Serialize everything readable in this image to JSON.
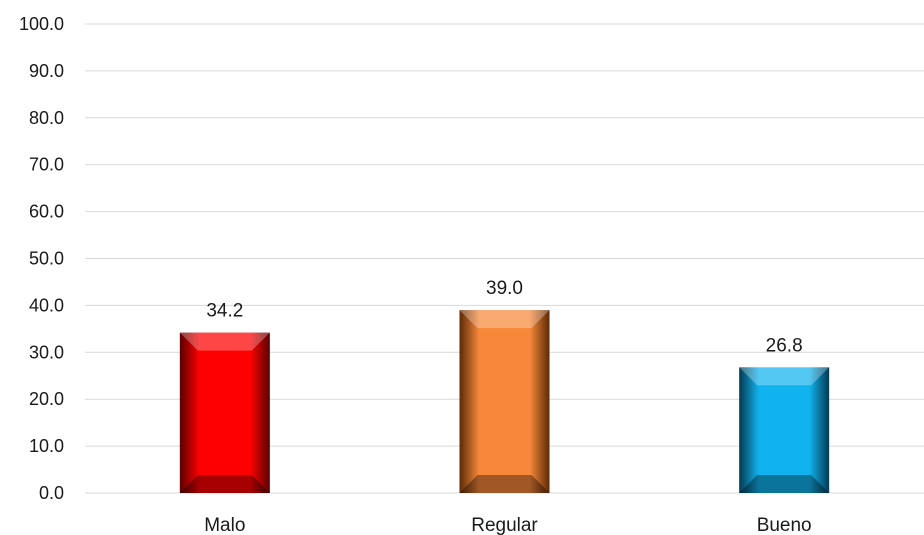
{
  "chart_data": {
    "type": "bar",
    "title": "",
    "xlabel": "",
    "ylabel": "",
    "categories": [
      "Malo",
      "Regular",
      "Bueno"
    ],
    "values": [
      34.2,
      39.0,
      26.8
    ],
    "value_labels": [
      "34.2",
      "39.0",
      "26.8"
    ],
    "ylim": [
      0,
      100
    ],
    "yticks": [
      "0.0",
      "10.0",
      "20.0",
      "30.0",
      "40.0",
      "50.0",
      "60.0",
      "70.0",
      "80.0",
      "90.0",
      "100.0"
    ],
    "grid": true,
    "legend": "none",
    "bar_style": "beveled",
    "colors": [
      "#ff0000",
      "#f7883a",
      "#11b3ee"
    ],
    "shadow_colors": [
      "#5a0000",
      "#5c2a06",
      "#043a52"
    ]
  }
}
